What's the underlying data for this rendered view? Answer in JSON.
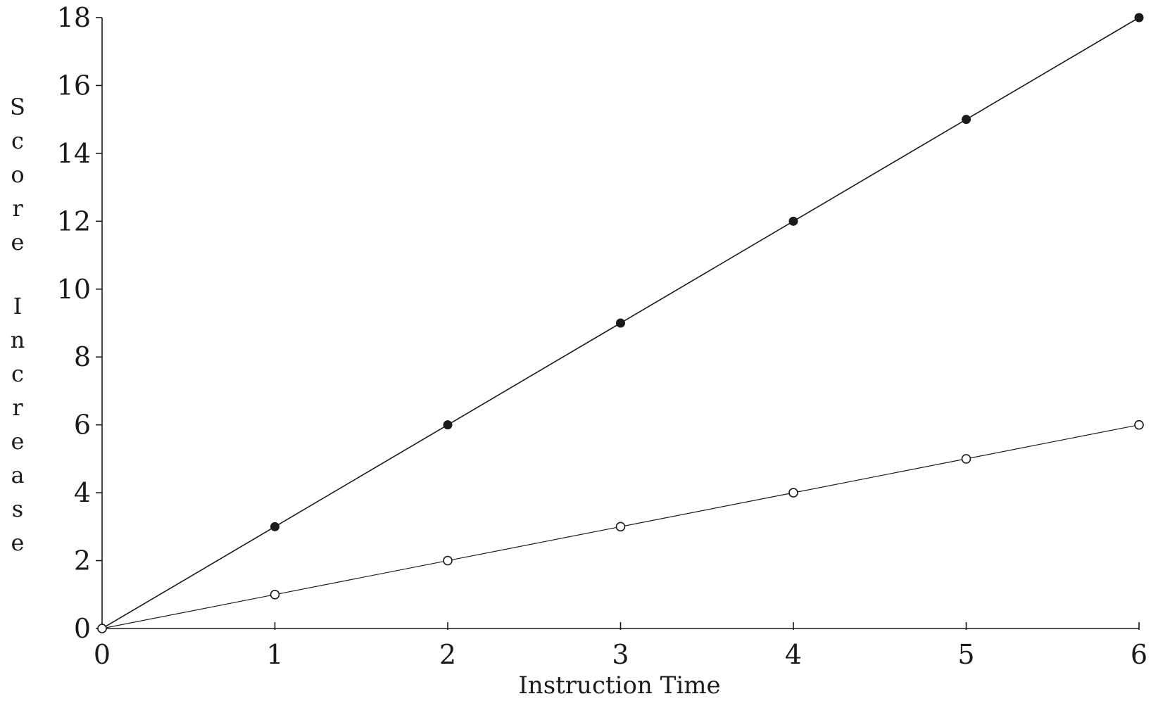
{
  "chart_data": {
    "type": "line",
    "title": "",
    "xlabel": "Instruction Time",
    "ylabel": "Score Increase",
    "x": [
      0,
      1,
      2,
      3,
      4,
      5,
      6
    ],
    "xticks": [
      "0",
      "1",
      "2",
      "3",
      "4",
      "5",
      "6"
    ],
    "yticks": [
      "0",
      "2",
      "4",
      "6",
      "8",
      "10",
      "12",
      "14",
      "16",
      "18"
    ],
    "xlim": [
      0,
      6
    ],
    "ylim": [
      0,
      18
    ],
    "grid": false,
    "series": [
      {
        "values": [
          0,
          3,
          6,
          9,
          12,
          15,
          18
        ],
        "marker": "filled-circle",
        "color": "#1a1a1a"
      },
      {
        "values": [
          0,
          1,
          2,
          3,
          4,
          5,
          6
        ],
        "marker": "open-circle",
        "color": "#1a1a1a"
      }
    ]
  }
}
